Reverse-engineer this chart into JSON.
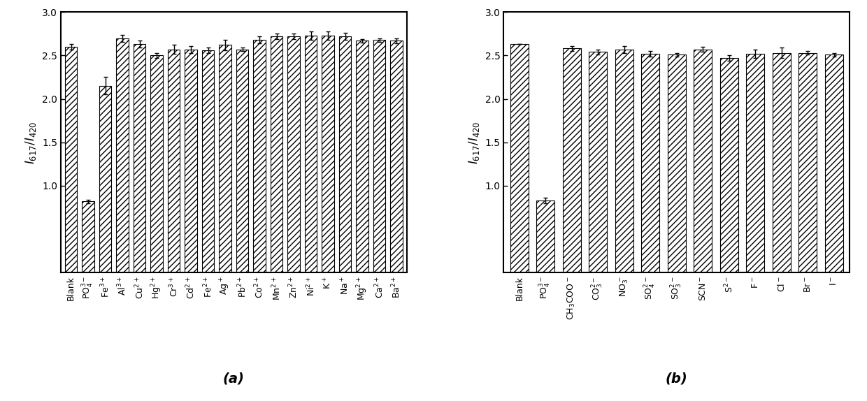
{
  "chart_a": {
    "categories": [
      "Blank",
      "PO$_4^{3-}$",
      "Fe$^{3+}$",
      "Al$^{3+}$",
      "Cu$^{2+}$",
      "Hg$^{2+}$",
      "Cr$^{3+}$",
      "Cd$^{2+}$",
      "Fe$^{2+}$",
      "Ag$^+$",
      "Pb$^{2+}$",
      "Co$^{2+}$",
      "Mn$^{2+}$",
      "Zn$^{2+}$",
      "Ni$^{2+}$",
      "K$^+$",
      "Na$^+$",
      "Mg$^{2+}$",
      "Ca$^{2+}$",
      "Ba$^{2+}$"
    ],
    "values": [
      2.6,
      0.82,
      2.15,
      2.7,
      2.63,
      2.5,
      2.57,
      2.57,
      2.56,
      2.62,
      2.57,
      2.68,
      2.72,
      2.72,
      2.73,
      2.73,
      2.72,
      2.67,
      2.68,
      2.67
    ],
    "errors": [
      0.03,
      0.02,
      0.1,
      0.04,
      0.04,
      0.03,
      0.05,
      0.04,
      0.03,
      0.06,
      0.02,
      0.04,
      0.03,
      0.03,
      0.05,
      0.05,
      0.04,
      0.02,
      0.02,
      0.03
    ],
    "ylabel": "$I_{617}/I_{420}$",
    "ylim": [
      0.0,
      3.0
    ],
    "yticks": [
      1.0,
      1.5,
      2.0,
      2.5,
      3.0
    ],
    "label": "(a)"
  },
  "chart_b": {
    "categories": [
      "Blank",
      "PO$_4^{3-}$",
      "CH$_3$COO$^-$",
      "CO$_3^{2-}$",
      "NO$_3^-$",
      "SO$_4^{2-}$",
      "SO$_3^{2-}$",
      "SCN$^-$",
      "S$^{2-}$",
      "F$^-$",
      "Cl$^-$",
      "Br$^-$",
      "I$^-$"
    ],
    "values": [
      2.63,
      0.83,
      2.58,
      2.54,
      2.57,
      2.52,
      2.51,
      2.57,
      2.47,
      2.52,
      2.53,
      2.53,
      2.51
    ],
    "errors": [
      0.0,
      0.03,
      0.03,
      0.03,
      0.04,
      0.03,
      0.02,
      0.03,
      0.03,
      0.05,
      0.06,
      0.02,
      0.02
    ],
    "ylabel": "$I_{617}/I_{420}$",
    "ylim": [
      0.0,
      3.0
    ],
    "yticks": [
      1.0,
      1.5,
      2.0,
      2.5,
      3.0
    ],
    "label": "(b)"
  },
  "hatch_pattern": "////",
  "bar_edgecolor": "black",
  "bar_facecolor": "white",
  "bar_linewidth": 0.8,
  "ecolor": "black",
  "capsize": 2,
  "figsize": [
    12.4,
    5.74
  ],
  "dpi": 100
}
